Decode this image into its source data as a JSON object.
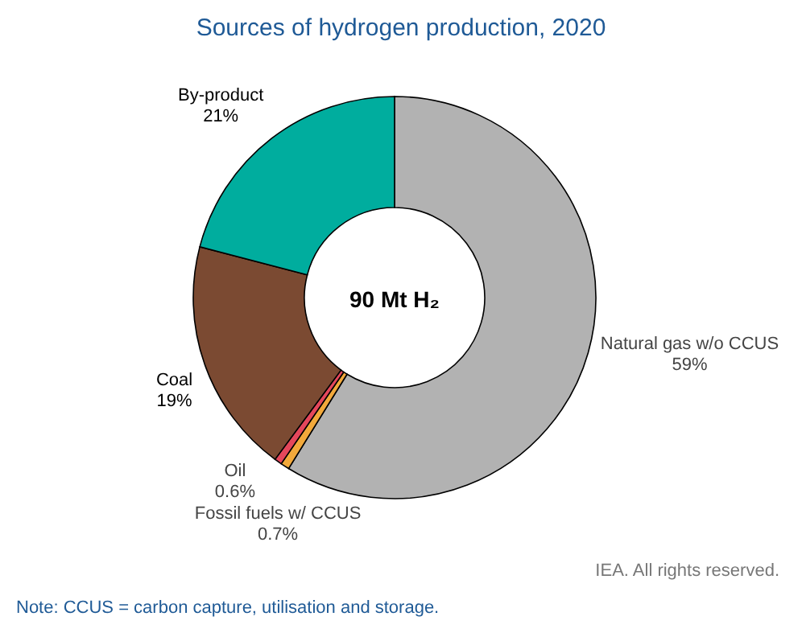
{
  "chart_data": {
    "type": "donut",
    "title": "Sources of hydrogen production, 2020",
    "categories": [
      "Natural gas w/o CCUS",
      "Fossil fuels w/ CCUS",
      "Oil",
      "Coal",
      "By-product"
    ],
    "values": [
      59,
      0.7,
      0.6,
      19,
      21
    ],
    "value_labels": [
      "59%",
      "0.7%",
      "0.6%",
      "19%",
      "21%"
    ],
    "colors": [
      "#b2b2b2",
      "#f2a93b",
      "#e4475b",
      "#7b4a32",
      "#00ad9e"
    ],
    "annotations": [
      "90 Mt H₂",
      "IEA. All rights reserved.",
      "Note: CCUS = carbon capture, utilisation and storage."
    ]
  }
}
